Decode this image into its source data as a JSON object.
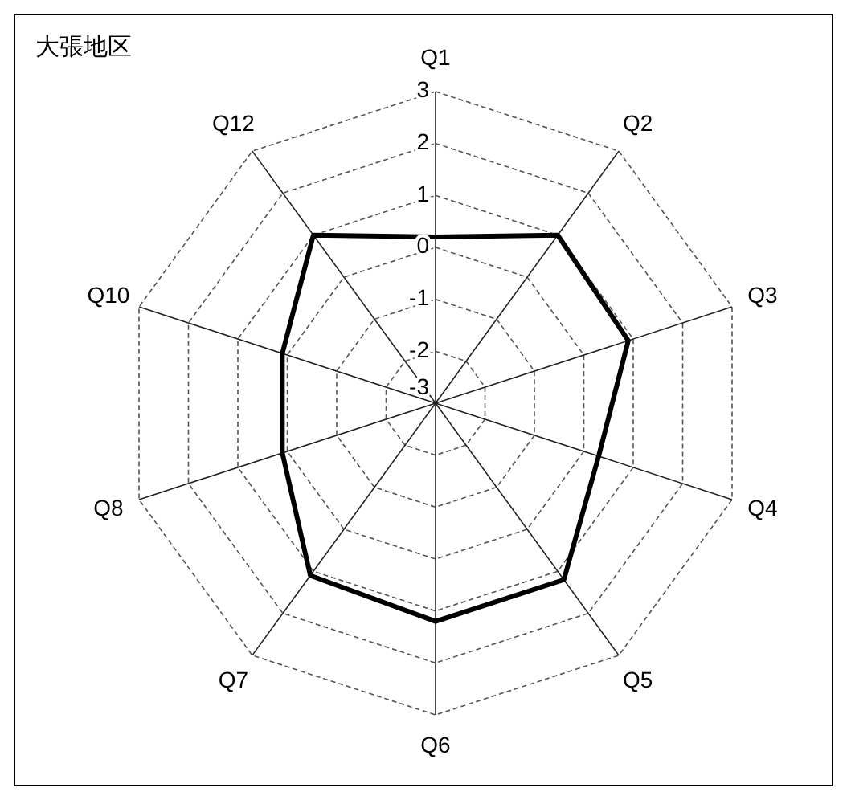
{
  "chart_data": {
    "type": "radar",
    "title": "大張地区",
    "categories": [
      "Q1",
      "Q2",
      "Q3",
      "Q4",
      "Q5",
      "Q6",
      "Q7",
      "Q8",
      "Q10",
      "Q12"
    ],
    "series": [
      {
        "color": "#000000",
        "values": [
          0.2,
          1.0,
          0.9,
          0.3,
          1.2,
          1.2,
          1.1,
          0.1,
          0.1,
          1.0
        ]
      }
    ],
    "ylim": [
      -3,
      3
    ],
    "yticks": [
      -3,
      -2,
      -1,
      0,
      1,
      2,
      3
    ],
    "grid": true,
    "marker": "none",
    "line_style": "solid"
  }
}
